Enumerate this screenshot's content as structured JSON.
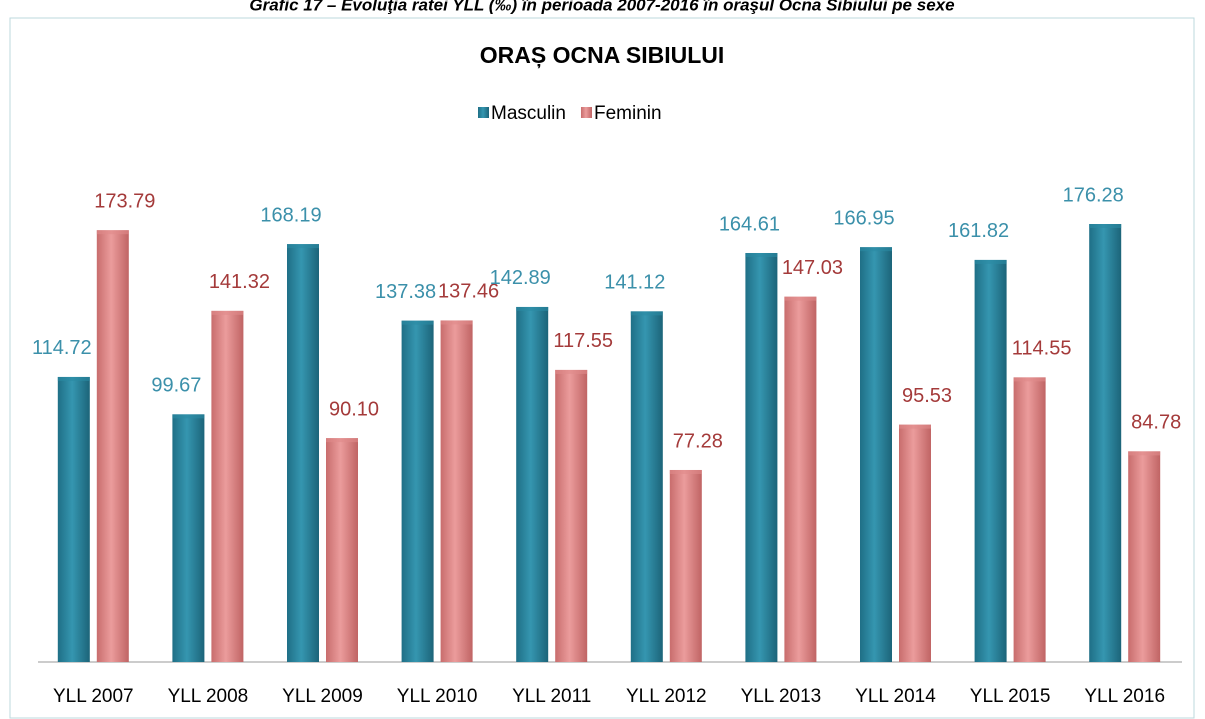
{
  "chart_data": {
    "type": "bar",
    "caption": "Grafic 17 – Evoluţia ratei YLL (‰) în perioada 2007-2016 în oraşul Ocna Sibiului pe sexe",
    "title": "ORAȘ OCNA SIBIULUI",
    "categories": [
      "YLL 2007",
      "YLL 2008",
      "YLL 2009",
      "YLL 2010",
      "YLL 2011",
      "YLL 2012",
      "YLL 2013",
      "YLL 2014",
      "YLL 2015",
      "YLL 2016"
    ],
    "series": [
      {
        "name": "Masculin",
        "color": "#2b8aa3",
        "label_color": "#3b90aa",
        "values": [
          114.72,
          99.67,
          168.19,
          137.38,
          142.89,
          141.12,
          164.61,
          166.95,
          161.82,
          176.28
        ],
        "value_labels": [
          "114.72",
          "99.67",
          "168.19",
          "137.38",
          "142.89",
          "141.12",
          "164.61",
          "166.95",
          "161.82",
          "176.28"
        ]
      },
      {
        "name": "Feminin",
        "color": "#e08a8a",
        "label_color": "#a43a3a",
        "values": [
          173.79,
          141.32,
          90.1,
          137.46,
          117.55,
          77.28,
          147.03,
          95.53,
          114.55,
          84.78
        ],
        "value_labels": [
          "173.79",
          "141.32",
          "90.10",
          "137.46",
          "117.55",
          "77.28",
          "147.03",
          "95.53",
          "114.55",
          "84.78"
        ]
      }
    ],
    "legend": "top"
  }
}
